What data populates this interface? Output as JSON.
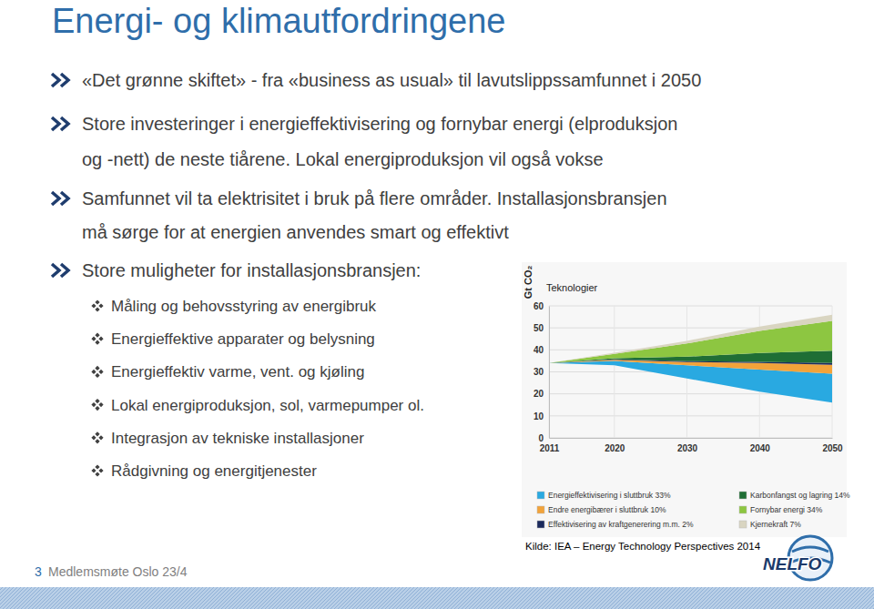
{
  "slide": {
    "title": "Energi- og klimautfordringene",
    "bullets": [
      {
        "lines": [
          "«Det grønne skiftet» - fra «business as usual» til lavutslippssamfunnet i 2050"
        ]
      },
      {
        "lines": [
          "Store investeringer i energieffektivisering og fornybar energi (elproduksjon",
          "og -nett) de neste tiårene. Lokal energiproduksjon vil også vokse"
        ]
      },
      {
        "lines": [
          "Samfunnet vil ta elektrisitet i bruk på flere områder. Installasjonsbransjen",
          "må sørge for at energien anvendes smart og effektivt"
        ]
      },
      {
        "lines": [
          "Store muligheter for installasjonsbransjen:"
        ]
      }
    ],
    "sub_bullets": [
      "Måling og behovsstyring av energibruk",
      "Energieffektive apparater og belysning",
      "Energieffektiv varme, vent. og kjøling",
      "Lokal energiproduksjon, sol, varmepumper ol.",
      "Integrasjon av tekniske installasjoner",
      "Rådgivning og energitjenester"
    ],
    "source": "Kilde: IEA – Energy Technology Perspectives 2014",
    "footer": {
      "page": "3",
      "text": "Medlemsmøte Oslo 23/4"
    },
    "logo": "NELFO"
  },
  "chart_data": {
    "type": "area",
    "title": "Teknologier",
    "y_label": "Gt CO₂",
    "stacked": true,
    "grid": true,
    "x": [
      2011,
      2020,
      2030,
      2040,
      2050
    ],
    "xlim": [
      2011,
      2050
    ],
    "xticks": [
      2011,
      2020,
      2030,
      2040,
      2050
    ],
    "ylim": [
      0,
      60
    ],
    "yticks": [
      0,
      10,
      20,
      30,
      40,
      50,
      60
    ],
    "series": [
      {
        "values": [
          34,
          33,
          27,
          21,
          16
        ]
      },
      {
        "name": "Energieffektivisering i sluttbruk 33%",
        "color": "#29a9e1",
        "values": [
          0,
          2,
          6,
          10,
          13.2
        ]
      },
      {
        "name": "Endre energibærer i sluttbruk 10%",
        "color": "#f2a33a",
        "values": [
          0,
          0.5,
          1.5,
          3,
          4
        ]
      },
      {
        "name": "Effektivisering av kraftgenerering m.m. 2%",
        "color": "#1b2a5c",
        "values": [
          0,
          0.2,
          0.4,
          0.6,
          0.8
        ]
      },
      {
        "name": "Karbonfangst og lagring 14%",
        "color": "#1f6e35",
        "values": [
          0,
          0.5,
          2,
          4,
          5.6
        ]
      },
      {
        "name": "Fornybar energi 34%",
        "color": "#8dc641",
        "values": [
          0,
          2,
          6,
          10,
          13.6
        ]
      },
      {
        "name": "Kjernekraft 7%",
        "color": "#d9d5c1",
        "values": [
          0,
          0.5,
          1.2,
          2,
          2.8
        ]
      }
    ]
  }
}
